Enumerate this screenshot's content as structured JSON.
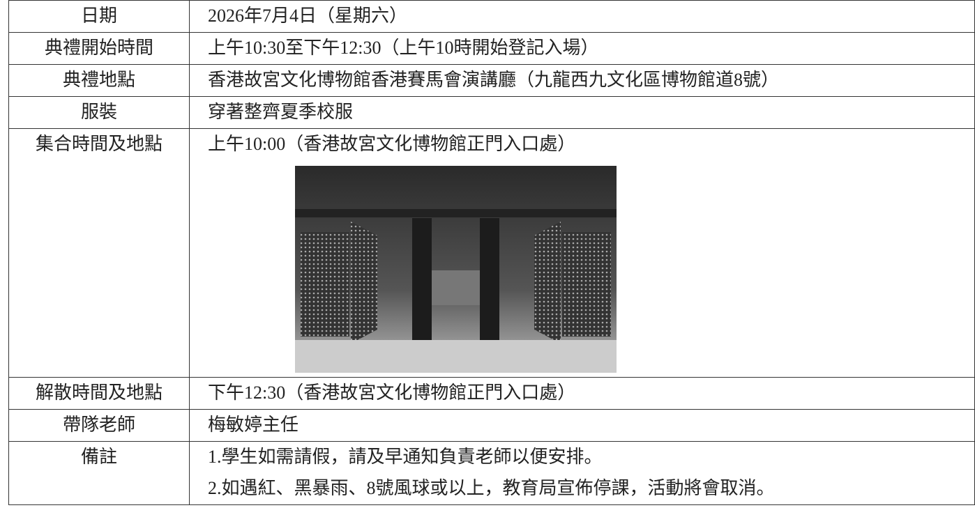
{
  "table": {
    "rows": [
      {
        "label": "日期",
        "value": "2026年7月4日（星期六）"
      },
      {
        "label": "典禮開始時間",
        "value": "上午10:30至下午12:30（上午10時開始登記入場）"
      },
      {
        "label": "典禮地點",
        "value": "香港故宮文化博物館香港賽馬會演講廳（九龍西九文化區博物館道8號）"
      },
      {
        "label": "服裝",
        "value": "穿著整齊夏季校服"
      },
      {
        "label": "集合時間及地點",
        "value": "上午10:00（香港故宮文化博物館正門入口處）"
      },
      {
        "label": "解散時間及地點",
        "value": "下午12:30（香港故宮文化博物館正門入口處）"
      },
      {
        "label": "帶隊老師",
        "value": "梅敏婷主任"
      },
      {
        "label": "備註",
        "value": [
          "1.學生如需請假，請及早通知負責老師以便安排。",
          "2.如遇紅、黑暴雨、8號風球或以上，教育局宣佈停課，活動將會取消。"
        ]
      }
    ]
  }
}
